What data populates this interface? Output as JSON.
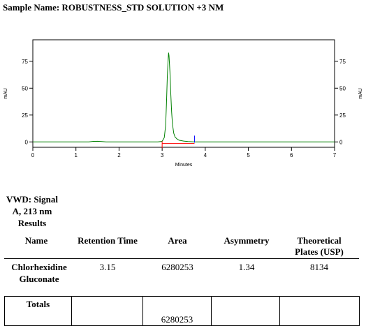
{
  "sample": {
    "label": "Sample Name:",
    "value": "ROBUSTNESS_STD SOLUTION +3 NM"
  },
  "chart_data": {
    "type": "line",
    "title": "",
    "xlabel": "Minutes",
    "ylabel": "mAU",
    "ylabel_right": "mAU",
    "xlim": [
      0,
      7
    ],
    "ylim": [
      -5,
      95
    ],
    "xticks": [
      0,
      1,
      2,
      3,
      4,
      5,
      6,
      7
    ],
    "yticks": [
      0,
      25,
      50,
      75
    ],
    "grid": false,
    "series": [
      {
        "color": "#008000",
        "x": [
          0,
          1.3,
          1.4,
          1.5,
          1.6,
          1.7,
          2.9,
          3.0,
          3.05,
          3.08,
          3.1,
          3.12,
          3.14,
          3.15,
          3.16,
          3.18,
          3.2,
          3.22,
          3.24,
          3.27,
          3.3,
          3.35,
          3.4,
          3.5,
          3.6,
          3.75,
          7
        ],
        "y": [
          0,
          0,
          0.5,
          0.6,
          0.4,
          0,
          0,
          0.5,
          4,
          15,
          35,
          60,
          78,
          83,
          80,
          65,
          45,
          28,
          16,
          8,
          4.5,
          2.5,
          1.5,
          0.8,
          0.3,
          0,
          0
        ]
      }
    ],
    "annotations": [
      {
        "type": "baseline",
        "color": "#ff0000",
        "x": [
          3.0,
          3.75
        ],
        "y": [
          -1.5,
          -1.5
        ]
      },
      {
        "type": "start-tick",
        "color": "#ff0000",
        "x": 3.0
      },
      {
        "type": "end-tick",
        "color": "#0000ff",
        "x": 3.75
      }
    ]
  },
  "results": {
    "heading_lines": [
      "VWD: Signal",
      "A, 213 nm",
      "Results"
    ],
    "columns": [
      {
        "lines": [
          "Name"
        ]
      },
      {
        "lines": [
          "Retention Time"
        ]
      },
      {
        "lines": [
          "Area"
        ]
      },
      {
        "lines": [
          "Asymmetry"
        ]
      },
      {
        "lines": [
          "Theoretical",
          "Plates (USP)"
        ]
      }
    ],
    "row": {
      "name_lines": [
        "Chlorhexidine",
        "Gluconate"
      ],
      "retention_time": "3.15",
      "area": "6280253",
      "asymmetry": "1.34",
      "plates": "8134"
    },
    "totals": {
      "label": "Totals",
      "area": "6280253"
    }
  }
}
